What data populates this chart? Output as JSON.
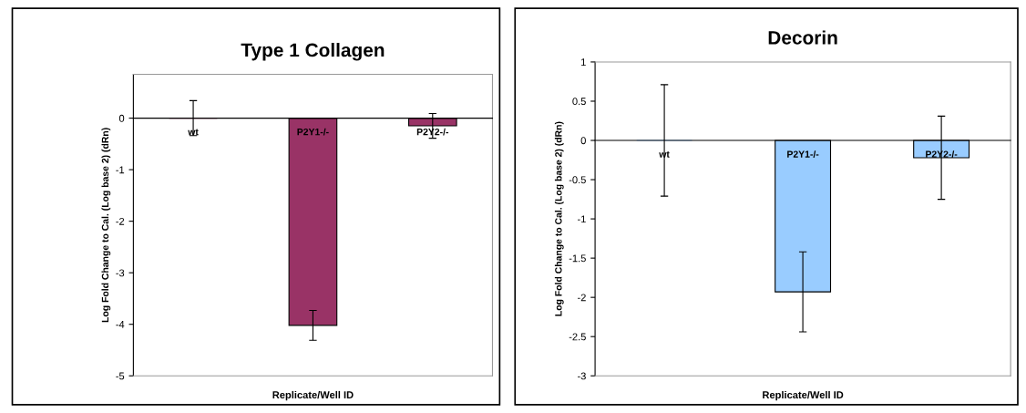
{
  "chart_data": [
    {
      "type": "bar",
      "title": "Type 1 Collagen",
      "xlabel": "Replicate/Well ID",
      "ylabel": "Log Fold Change to Cal. (Log base 2) (dRn)",
      "categories": [
        "wt",
        "P2Y1-/-",
        "P2Y2-/-"
      ],
      "values": [
        0,
        -4.02,
        -0.15
      ],
      "errors": [
        0.34,
        0.29,
        0.24
      ],
      "color": "#993366",
      "ylim": [
        -5,
        0.85
      ],
      "yticks": [
        -5,
        -4,
        -3,
        -2,
        -1,
        0
      ],
      "grid": false
    },
    {
      "type": "bar",
      "title": "Decorin",
      "xlabel": "Replicate/Well ID",
      "ylabel": "Log Fold Change to Cal. (Log base 2) (dRn)",
      "categories": [
        "wt",
        "P2Y1-/-",
        "P2Y2-/-"
      ],
      "values": [
        0,
        -1.93,
        -0.22
      ],
      "errors": [
        0.71,
        0.51,
        0.53
      ],
      "color": "#99ccff",
      "ylim": [
        -3,
        1
      ],
      "yticks": [
        -3,
        -2.5,
        -2,
        -1.5,
        -1,
        -0.5,
        0,
        0.5,
        1
      ],
      "grid": false
    }
  ]
}
